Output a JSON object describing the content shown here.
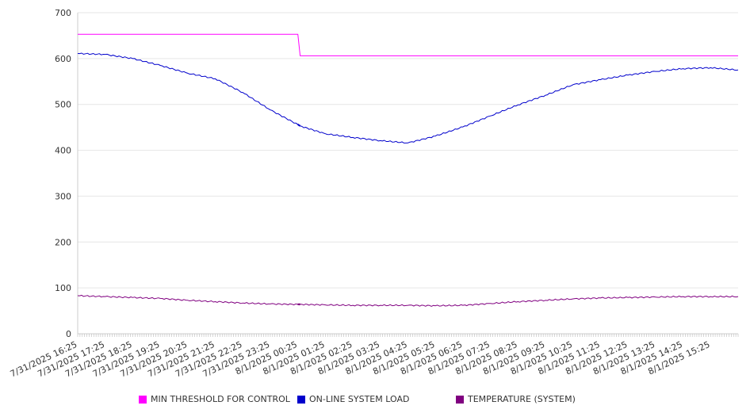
{
  "chart_data": {
    "type": "line",
    "title": "",
    "xlabel": "",
    "ylabel": "",
    "ylim": [
      0,
      700
    ],
    "yticks": [
      0,
      100,
      200,
      300,
      400,
      500,
      600,
      700
    ],
    "grid": true,
    "legend_position": "bottom",
    "x_tick_labels": [
      "7/31/2025 16:25",
      "7/31/2025 17:25",
      "7/31/2025 18:25",
      "7/31/2025 19:25",
      "7/31/2025 20:25",
      "7/31/2025 21:25",
      "7/31/2025 22:25",
      "7/31/2025 23:25",
      "8/1/2025 00:25",
      "8/1/2025 01:25",
      "8/1/2025 02:25",
      "8/1/2025 03:25",
      "8/1/2025 04:25",
      "8/1/2025 05:25",
      "8/1/2025 06:25",
      "8/1/2025 07:25",
      "8/1/2025 08:25",
      "8/1/2025 09:25",
      "8/1/2025 10:25",
      "8/1/2025 11:25",
      "8/1/2025 12:25",
      "8/1/2025 13:25",
      "8/1/2025 14:25",
      "8/1/2025 15:25"
    ],
    "x": [
      "7/31/2025 16:25",
      "7/31/2025 17:25",
      "7/31/2025 18:25",
      "7/31/2025 19:25",
      "7/31/2025 20:25",
      "7/31/2025 21:25",
      "7/31/2025 22:25",
      "7/31/2025 23:25",
      "8/1/2025 00:25",
      "8/1/2025 00:30",
      "8/1/2025 01:25",
      "8/1/2025 02:25",
      "8/1/2025 03:25",
      "8/1/2025 04:25",
      "8/1/2025 05:25",
      "8/1/2025 06:25",
      "8/1/2025 07:25",
      "8/1/2025 08:25",
      "8/1/2025 09:25",
      "8/1/2025 10:25",
      "8/1/2025 11:25",
      "8/1/2025 12:25",
      "8/1/2025 13:25",
      "8/1/2025 14:25",
      "8/1/2025 15:25",
      "8/1/2025 16:25"
    ],
    "series": [
      {
        "name": "MIN THRESHOLD FOR CONTROL",
        "color": "#ff00ff",
        "values": [
          653,
          653,
          653,
          653,
          653,
          653,
          653,
          653,
          653,
          606,
          606,
          606,
          606,
          606,
          606,
          606,
          606,
          606,
          606,
          606,
          606,
          606,
          606,
          606,
          606,
          606
        ]
      },
      {
        "name": "ON-LINE SYSTEM LOAD",
        "color": "#0000cc",
        "values": [
          611,
          609,
          600,
          585,
          568,
          556,
          526,
          488,
          456,
          453,
          436,
          428,
          421,
          416,
          431,
          451,
          475,
          499,
          520,
          543,
          554,
          564,
          572,
          578,
          580,
          575
        ]
      },
      {
        "name": "TEMPERATURE (SYSTEM)",
        "color": "#800080",
        "values": [
          83,
          81,
          79,
          77,
          73,
          70,
          67,
          65,
          64,
          64,
          63,
          62,
          62,
          62,
          61,
          62,
          66,
          70,
          73,
          76,
          78,
          79,
          80,
          81,
          81,
          81
        ]
      }
    ]
  }
}
